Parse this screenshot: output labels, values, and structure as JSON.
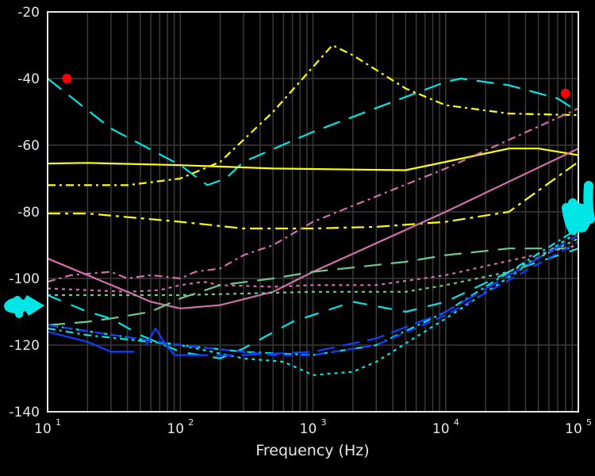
{
  "chart_data": {
    "type": "line",
    "title": "",
    "xlabel": "Frequency (Hz)",
    "ylabel": "",
    "xscale": "log",
    "xlim": [
      10,
      100000
    ],
    "ylim": [
      -140,
      -20
    ],
    "grid": true,
    "legend": null,
    "x_ticks": [
      {
        "value": 10,
        "base": "10",
        "exp": "1"
      },
      {
        "value": 100,
        "base": "10",
        "exp": "2"
      },
      {
        "value": 1000,
        "base": "10",
        "exp": "3"
      },
      {
        "value": 10000,
        "base": "10",
        "exp": "4"
      },
      {
        "value": 100000,
        "base": "10",
        "exp": "5"
      }
    ],
    "y_ticks": [
      -20,
      -40,
      -60,
      -80,
      -100,
      -120,
      -140
    ],
    "series": [
      {
        "name": "cyan-long-dash-upper",
        "color": "#00e5e5",
        "dash": "22,12",
        "points": [
          [
            10,
            -40
          ],
          [
            30,
            -55
          ],
          [
            100,
            -66
          ],
          [
            160,
            -72
          ],
          [
            220,
            -70
          ],
          [
            300,
            -65
          ],
          [
            1000,
            -56
          ],
          [
            10000,
            -41
          ],
          [
            13000,
            -40
          ],
          [
            30000,
            -42
          ],
          [
            70000,
            -46
          ],
          [
            100000,
            -50
          ]
        ]
      },
      {
        "name": "yellow-dashdot-peak",
        "color": "#ffff00",
        "dash": "10,5,3,5",
        "points": [
          [
            10,
            -72
          ],
          [
            40,
            -72
          ],
          [
            100,
            -70
          ],
          [
            200,
            -65
          ],
          [
            500,
            -50
          ],
          [
            1400,
            -30
          ],
          [
            2000,
            -33
          ],
          [
            5000,
            -43
          ],
          [
            10000,
            -48
          ],
          [
            30000,
            -50.5
          ],
          [
            100000,
            -51
          ]
        ]
      },
      {
        "name": "yellow-solid",
        "color": "#ffff00",
        "dash": "",
        "points": [
          [
            10,
            -65.5
          ],
          [
            20,
            -65.3
          ],
          [
            100,
            -66
          ],
          [
            500,
            -67
          ],
          [
            2000,
            -67.3
          ],
          [
            5000,
            -67.5
          ],
          [
            10000,
            -65
          ],
          [
            30000,
            -61
          ],
          [
            50000,
            -61
          ],
          [
            100000,
            -63
          ]
        ]
      },
      {
        "name": "yellow-dashdot-lower",
        "color": "#ffff00",
        "dash": "16,6,4,6",
        "points": [
          [
            10,
            -80.5
          ],
          [
            20,
            -80.5
          ],
          [
            100,
            -83
          ],
          [
            300,
            -85
          ],
          [
            1000,
            -85
          ],
          [
            3000,
            -84.5
          ],
          [
            10000,
            -83
          ],
          [
            30000,
            -80
          ],
          [
            100000,
            -65
          ]
        ]
      },
      {
        "name": "pink-dashdot",
        "color": "#d070a8",
        "dash": "10,5,3,5",
        "points": [
          [
            10,
            -101
          ],
          [
            15,
            -99
          ],
          [
            30,
            -98
          ],
          [
            40,
            -100
          ],
          [
            60,
            -99
          ],
          [
            100,
            -100
          ],
          [
            130,
            -98
          ],
          [
            200,
            -97
          ],
          [
            300,
            -93
          ],
          [
            500,
            -90
          ],
          [
            1000,
            -83
          ],
          [
            10000,
            -67
          ],
          [
            100000,
            -49
          ]
        ]
      },
      {
        "name": "pink-solid",
        "color": "#d070a8",
        "dash": "",
        "points": [
          [
            10,
            -94
          ],
          [
            20,
            -99
          ],
          [
            40,
            -104
          ],
          [
            60,
            -107
          ],
          [
            100,
            -109
          ],
          [
            200,
            -108
          ],
          [
            500,
            -104
          ],
          [
            1000,
            -98
          ],
          [
            10000,
            -80
          ],
          [
            100000,
            -61
          ]
        ]
      },
      {
        "name": "pink-dotted",
        "color": "#d070a8",
        "dash": "4,5",
        "points": [
          [
            10,
            -103
          ],
          [
            20,
            -103.5
          ],
          [
            40,
            -104
          ],
          [
            70,
            -103.5
          ],
          [
            100,
            -102
          ],
          [
            150,
            -101
          ],
          [
            200,
            -102
          ],
          [
            500,
            -102.5
          ],
          [
            1000,
            -102
          ],
          [
            3000,
            -102
          ],
          [
            10000,
            -99
          ],
          [
            100000,
            -90
          ]
        ]
      },
      {
        "name": "green-dotted",
        "color": "#70c890",
        "dash": "4,5",
        "points": [
          [
            10,
            -105
          ],
          [
            100,
            -105
          ],
          [
            1000,
            -104
          ],
          [
            5000,
            -104
          ],
          [
            10000,
            -102
          ],
          [
            30000,
            -98
          ],
          [
            100000,
            -88
          ]
        ]
      },
      {
        "name": "green-long-dash",
        "color": "#70c890",
        "dash": "22,12",
        "points": [
          [
            10,
            -114
          ],
          [
            20,
            -113
          ],
          [
            30,
            -112
          ],
          [
            60,
            -110
          ],
          [
            100,
            -106
          ],
          [
            200,
            -102
          ],
          [
            500,
            -100
          ],
          [
            1000,
            -98
          ],
          [
            5000,
            -95
          ],
          [
            10000,
            -93
          ],
          [
            30000,
            -91
          ],
          [
            100000,
            -91
          ]
        ]
      },
      {
        "name": "cyan-medium-dash",
        "color": "#00e5e5",
        "dash": "18,14",
        "points": [
          [
            10,
            -105
          ],
          [
            20,
            -110
          ],
          [
            30,
            -112
          ],
          [
            50,
            -117
          ],
          [
            100,
            -122
          ],
          [
            200,
            -124
          ],
          [
            300,
            -121
          ],
          [
            700,
            -113
          ],
          [
            2000,
            -107
          ],
          [
            5000,
            -110
          ],
          [
            10000,
            -107
          ],
          [
            30000,
            -98
          ],
          [
            100000,
            -91
          ]
        ]
      },
      {
        "name": "cyan-dashdot",
        "color": "#00e5e5",
        "dash": "10,5,3,5",
        "points": [
          [
            10,
            -115
          ],
          [
            20,
            -117
          ],
          [
            100,
            -120
          ],
          [
            300,
            -122
          ],
          [
            1000,
            -123
          ],
          [
            3000,
            -120
          ],
          [
            10000,
            -110
          ],
          [
            100000,
            -85
          ]
        ]
      },
      {
        "name": "cyan-dotted",
        "color": "#00e5e5",
        "dash": "4,5",
        "points": [
          [
            10,
            -114
          ],
          [
            100,
            -120
          ],
          [
            300,
            -124
          ],
          [
            600,
            -125
          ],
          [
            1000,
            -129
          ],
          [
            2000,
            -128
          ],
          [
            3000,
            -125
          ],
          [
            10000,
            -112
          ],
          [
            100000,
            -86
          ]
        ]
      },
      {
        "name": "blue-solid",
        "color": "#1040ff",
        "dash": "",
        "points": [
          [
            10,
            -116
          ],
          [
            20,
            -119
          ],
          [
            30,
            -122
          ],
          [
            45,
            -122
          ]
        ]
      },
      {
        "name": "blue-spike",
        "color": "#1040ff",
        "dash": "",
        "points": [
          [
            55,
            -120
          ],
          [
            65,
            -115
          ],
          [
            75,
            -119
          ],
          [
            90,
            -123
          ],
          [
            120,
            -123
          ]
        ]
      },
      {
        "name": "blue-long-dash",
        "color": "#1040ff",
        "dash": "22,10",
        "points": [
          [
            120,
            -123
          ],
          [
            300,
            -123
          ],
          [
            1000,
            -122
          ],
          [
            3000,
            -118
          ],
          [
            10000,
            -110
          ],
          [
            100000,
            -87
          ]
        ]
      },
      {
        "name": "blue-dash",
        "color": "#1040ff",
        "dash": "12,8",
        "points": [
          [
            10,
            -114
          ],
          [
            100,
            -120
          ],
          [
            500,
            -123
          ],
          [
            1000,
            -123
          ],
          [
            3000,
            -120
          ],
          [
            10000,
            -111
          ],
          [
            100000,
            -89
          ]
        ]
      }
    ],
    "markers": [
      {
        "x": 14,
        "y": -40,
        "color": "#ff0000"
      },
      {
        "x": 80000,
        "y": -44.5,
        "color": "#ff0000"
      }
    ],
    "annotations": [
      {
        "type": "hand-drawn-arrow",
        "color": "#00e5e5",
        "position": "left",
        "y": -107
      },
      {
        "type": "hand-drawn-scribble",
        "color": "#00e5e5",
        "position": "right",
        "y": -82
      }
    ]
  },
  "ui": {
    "background": "#000000",
    "frame_color": "#e6e6e6",
    "grid_color": "#3a3a3a"
  }
}
